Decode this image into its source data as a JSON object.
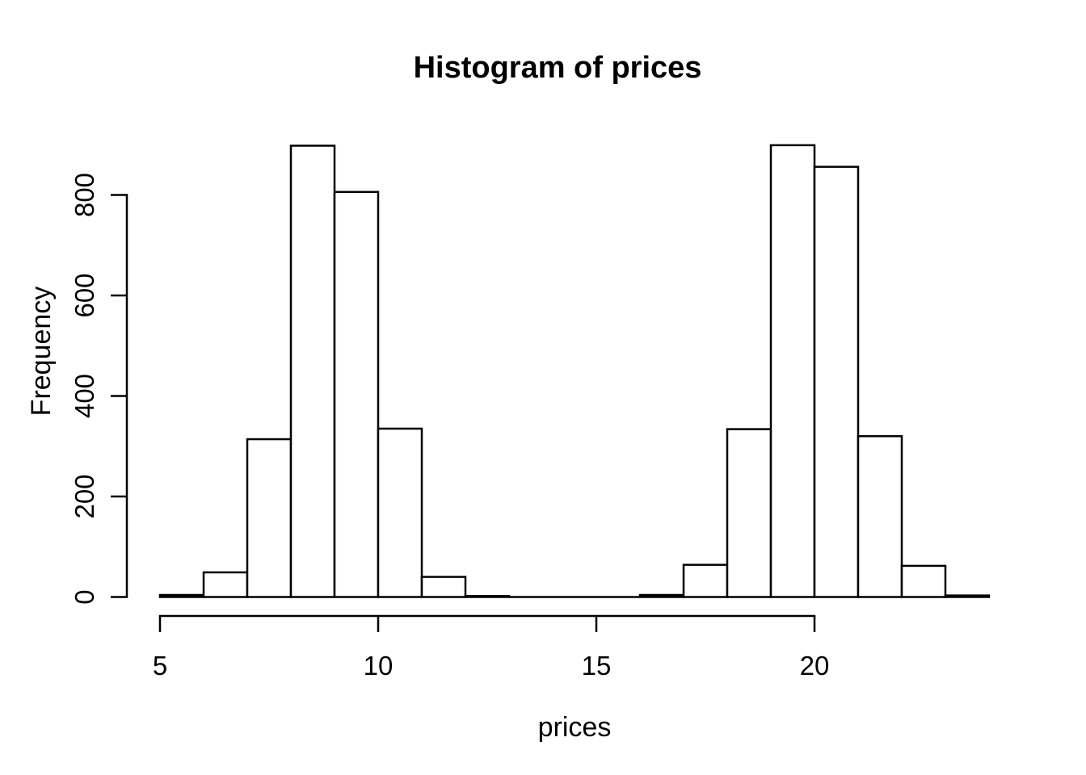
{
  "figure": {
    "title": "Histogram of prices",
    "xlabel": "prices",
    "ylabel": "Frequency"
  },
  "chart_data": {
    "type": "bar",
    "subtype": "histogram",
    "title": "Histogram of prices",
    "xlabel": "prices",
    "ylabel": "Frequency",
    "bin_width": 1,
    "bin_edges": [
      5,
      6,
      7,
      8,
      9,
      10,
      11,
      12,
      13,
      14,
      15,
      16,
      17,
      18,
      19,
      20,
      21,
      22,
      23,
      24
    ],
    "counts": [
      4,
      49,
      314,
      898,
      806,
      335,
      40,
      2,
      0,
      0,
      0,
      4,
      64,
      334,
      899,
      856,
      320,
      62,
      3
    ],
    "x_ticks": [
      5,
      10,
      15,
      20
    ],
    "y_ticks": [
      0,
      200,
      400,
      600,
      800
    ],
    "xlim": [
      5,
      24
    ],
    "ylim": [
      0,
      900
    ],
    "grid": false,
    "legend_position": "none",
    "colors": {
      "bar_fill": "#ffffff",
      "bar_stroke": "#000000",
      "axis": "#000000",
      "text": "#000000",
      "background": "#ffffff"
    }
  }
}
